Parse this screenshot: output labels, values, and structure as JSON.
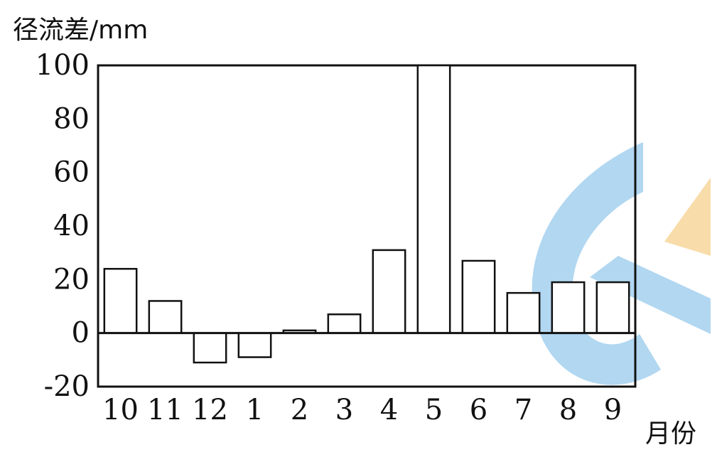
{
  "chart_data": {
    "type": "bar",
    "ylabel": "径流差/mm",
    "xlabel": "月份",
    "categories": [
      "10",
      "11",
      "12",
      "1",
      "2",
      "3",
      "4",
      "5",
      "6",
      "7",
      "8",
      "9"
    ],
    "values": [
      24,
      12,
      -11,
      -9,
      1,
      7,
      31,
      100,
      27,
      15,
      19,
      19
    ],
    "ylim": [
      -20,
      100
    ],
    "yticks": [
      "100",
      "80",
      "60",
      "40",
      "20",
      "0",
      "-20"
    ],
    "grid": false,
    "legend": "none"
  },
  "colors": {
    "bar_fill": "#ffffff",
    "stroke": "#111111",
    "watermark_blue": "#a9d3f0",
    "watermark_orange": "#f8d9a0"
  }
}
